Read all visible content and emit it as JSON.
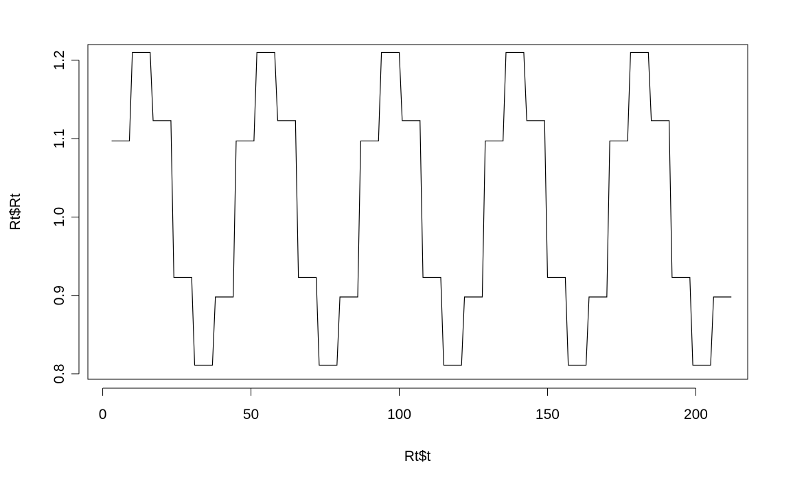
{
  "chart_data": {
    "type": "line",
    "xlabel": "Rt$t",
    "ylabel": "Rt$Rt",
    "xlim": [
      -5,
      217.5
    ],
    "ylim": [
      0.793,
      1.22
    ],
    "xticks": [
      0,
      50,
      100,
      150,
      200
    ],
    "xtick_labels": [
      "0",
      "50",
      "100",
      "150",
      "200"
    ],
    "yticks": [
      0.8,
      0.9,
      1.0,
      1.1,
      1.2
    ],
    "ytick_labels": [
      "0.8",
      "0.9",
      "1.0",
      "1.1",
      "1.2"
    ],
    "grid": false,
    "line_color": "#000000",
    "series": [
      {
        "x": [
          3,
          9,
          10,
          16,
          17,
          23,
          24,
          30,
          31,
          37,
          38,
          44,
          45,
          51,
          52,
          58,
          59,
          65,
          66,
          72,
          73,
          79,
          80,
          86,
          87,
          93,
          94,
          100,
          101,
          107,
          108,
          114,
          115,
          121,
          122,
          128,
          129,
          135,
          136,
          142,
          143,
          149,
          150,
          156,
          157,
          163,
          164,
          170,
          171,
          177,
          178,
          184,
          185,
          191,
          192,
          198,
          199,
          205,
          206,
          212
        ],
        "y": [
          1.097,
          1.097,
          1.21,
          1.21,
          1.123,
          1.123,
          0.923,
          0.923,
          0.811,
          0.811,
          0.898,
          0.898,
          1.097,
          1.097,
          1.21,
          1.21,
          1.123,
          1.123,
          0.923,
          0.923,
          0.811,
          0.811,
          0.898,
          0.898,
          1.097,
          1.097,
          1.21,
          1.21,
          1.123,
          1.123,
          0.923,
          0.923,
          0.811,
          0.811,
          0.898,
          0.898,
          1.097,
          1.097,
          1.21,
          1.21,
          1.123,
          1.123,
          0.923,
          0.923,
          0.811,
          0.811,
          0.898,
          0.898,
          1.097,
          1.097,
          1.21,
          1.21,
          1.123,
          1.123,
          0.923,
          0.923,
          0.811,
          0.811,
          0.898,
          0.898
        ]
      }
    ]
  }
}
